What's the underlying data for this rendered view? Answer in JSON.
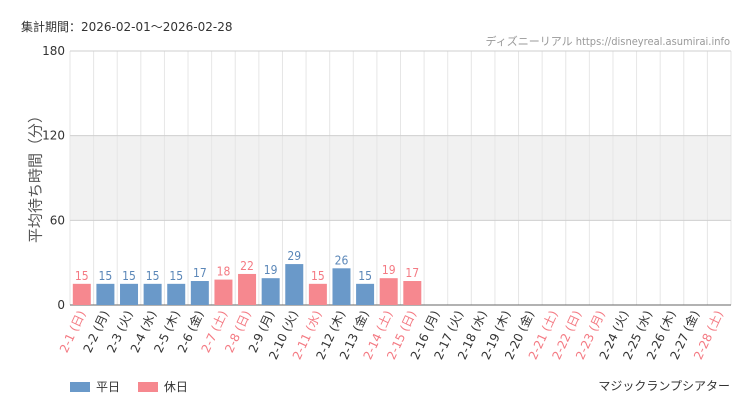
{
  "header": {
    "period": "集計期間：2026-02-01～2026-02-28",
    "source": "ディズニーリアル https://disneyreal.asumirai.info"
  },
  "attraction": "マジックランプシアター",
  "colors": {
    "weekday": "#6a99c9",
    "holiday": "#f6888f",
    "weekday_text": "#5b87b8",
    "holiday_text": "#f47a83",
    "band": "#f1f1f1",
    "grid": "#e6e6e6"
  },
  "legend": [
    {
      "key": "weekday",
      "label": "平日"
    },
    {
      "key": "holiday",
      "label": "休日"
    }
  ],
  "chart_data": {
    "type": "bar",
    "ylabel": "平均待ち時間（分）",
    "ylim": [
      0,
      180
    ],
    "yticks": [
      0,
      60,
      120,
      180
    ],
    "shaded_band": [
      60,
      120
    ],
    "categories": [
      "2-1 (日)",
      "2-2 (月)",
      "2-3 (火)",
      "2-4 (水)",
      "2-5 (木)",
      "2-6 (金)",
      "2-7 (土)",
      "2-8 (日)",
      "2-9 (月)",
      "2-10 (火)",
      "2-11 (水)",
      "2-12 (木)",
      "2-13 (金)",
      "2-14 (土)",
      "2-15 (日)",
      "2-16 (月)",
      "2-17 (火)",
      "2-18 (水)",
      "2-19 (木)",
      "2-20 (金)",
      "2-21 (土)",
      "2-22 (日)",
      "2-23 (月)",
      "2-24 (火)",
      "2-25 (水)",
      "2-26 (木)",
      "2-27 (金)",
      "2-28 (土)"
    ],
    "holiday": [
      true,
      false,
      false,
      false,
      false,
      false,
      true,
      true,
      false,
      false,
      true,
      false,
      false,
      true,
      true,
      false,
      false,
      false,
      false,
      false,
      true,
      true,
      true,
      false,
      false,
      false,
      false,
      true
    ],
    "values": [
      15,
      15,
      15,
      15,
      15,
      17,
      18,
      22,
      19,
      29,
      15,
      26,
      15,
      19,
      17,
      null,
      null,
      null,
      null,
      null,
      null,
      null,
      null,
      null,
      null,
      null,
      null,
      null
    ]
  }
}
